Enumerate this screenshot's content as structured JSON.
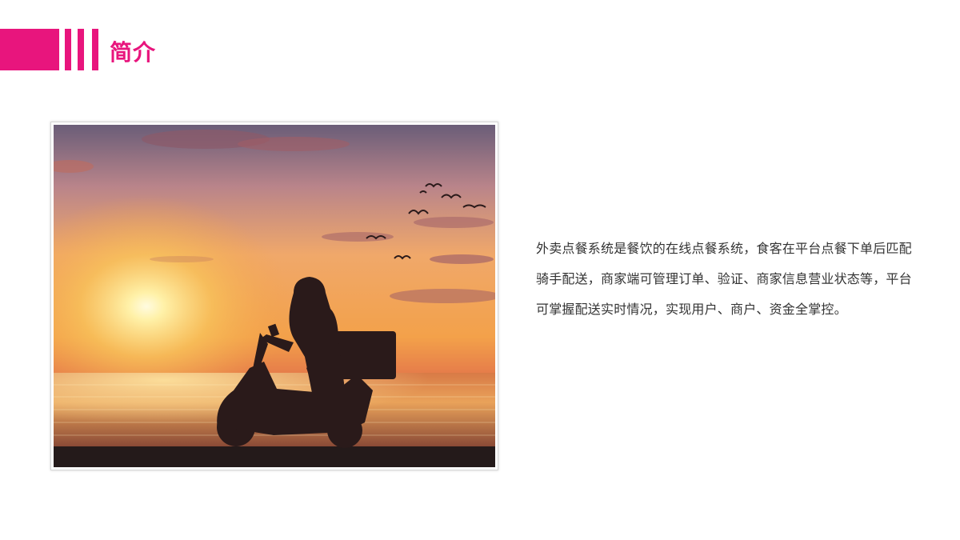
{
  "header": {
    "title": "简介",
    "accent_color": "#e8157d"
  },
  "photo": {
    "icon": "sunset-delivery-scooter-photo"
  },
  "content": {
    "paragraph": "外卖点餐系统是餐饮的在线点餐系统，食客在平台点餐下单后匹配骑手配送，商家端可管理订单、验证、商家信息营业状态等，平台可掌握配送实时情况，实现用户、商户、资金全掌控。"
  }
}
